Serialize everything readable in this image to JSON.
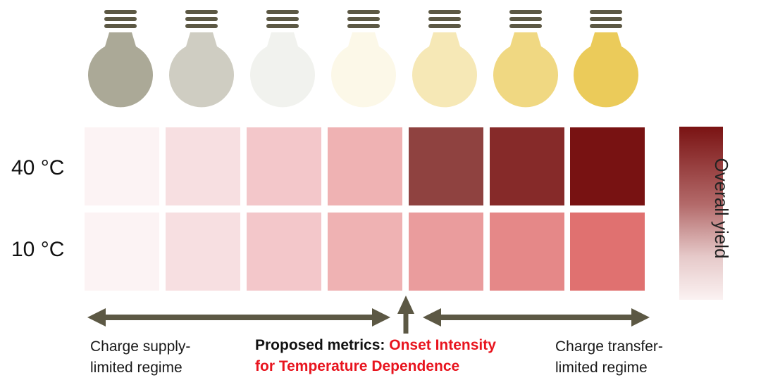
{
  "heatmap": {
    "rows": [
      {
        "label": "40 °C",
        "cells": [
          "#fcf3f4",
          "#f7dfe1",
          "#f3c7ca",
          "#efb2b3",
          "#8f4240",
          "#862a29",
          "#781212"
        ]
      },
      {
        "label": "10 °C",
        "cells": [
          "#fcf3f4",
          "#f7dfe1",
          "#f3c7ca",
          "#efb2b3",
          "#ea9c9d",
          "#e58888",
          "#e07170"
        ]
      }
    ]
  },
  "bulbs": {
    "colors": [
      "#aba997",
      "#cfcdc2",
      "#f1f2ee",
      "#fcf8e8",
      "#f6e8b6",
      "#f0d882",
      "#ebcb5a"
    ],
    "base_color": "#5c5844"
  },
  "colorbar": {
    "label": "Overall yield"
  },
  "arrow_color": "#5c5844",
  "captions": {
    "left_line1": "Charge supply-",
    "left_line2": "limited regime",
    "right_line1": "Charge transfer-",
    "right_line2": "limited regime"
  },
  "metric": {
    "prefix": "Proposed metrics: ",
    "highlight_line1": "Onset Intensity",
    "highlight_line2": "for Temperature Dependence"
  }
}
